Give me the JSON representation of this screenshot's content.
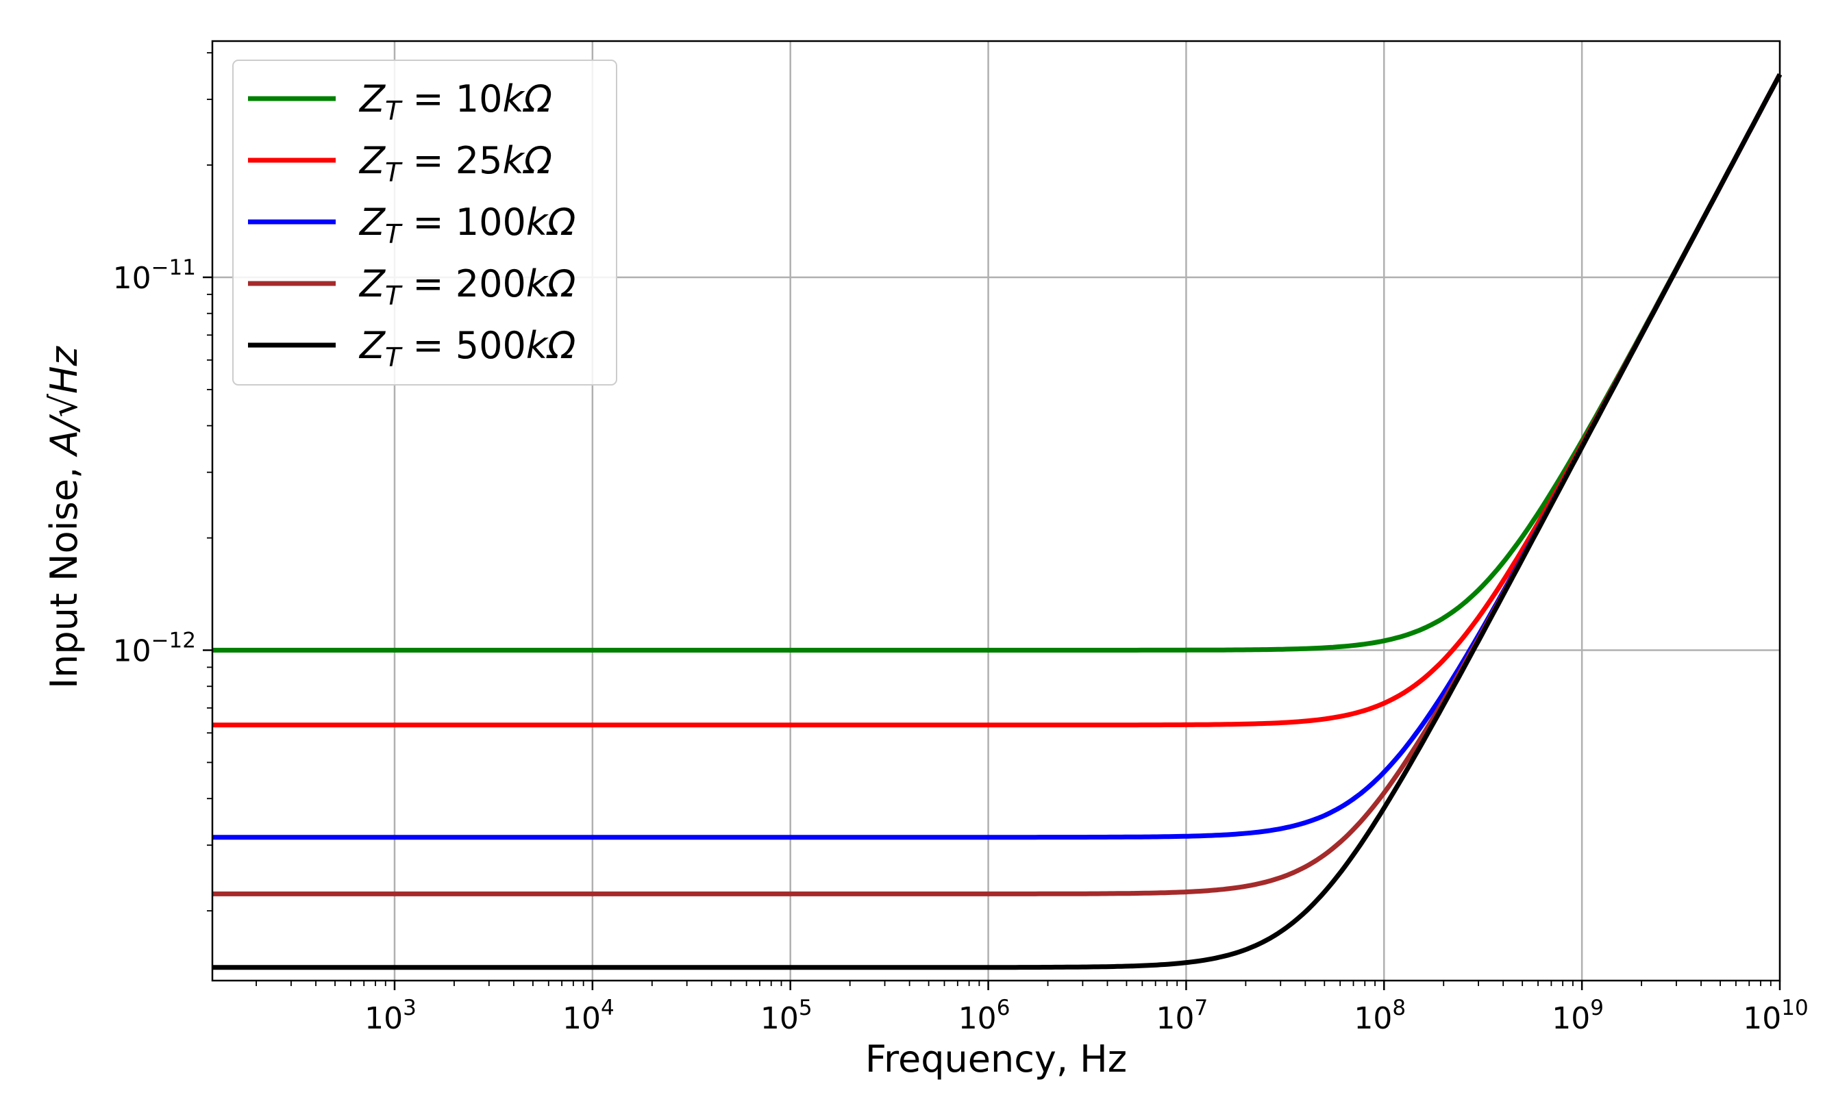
{
  "chart_data": {
    "type": "line",
    "xscale": "log",
    "yscale": "log",
    "xlabel": "Frequency, Hz",
    "ylabel_prefix": "Input Noise, ",
    "ylabel_unit": "A/√Hz",
    "xlim": [
      120,
      10000000000
    ],
    "ylim": [
      1.3e-13,
      4.3e-11
    ],
    "grid": true,
    "legend_position": "top-left",
    "x_ticks": [
      {
        "value": 1000,
        "base": "10",
        "exp": "3"
      },
      {
        "value": 10000,
        "base": "10",
        "exp": "4"
      },
      {
        "value": 100000,
        "base": "10",
        "exp": "5"
      },
      {
        "value": 1000000,
        "base": "10",
        "exp": "6"
      },
      {
        "value": 10000000,
        "base": "10",
        "exp": "7"
      },
      {
        "value": 100000000,
        "base": "10",
        "exp": "8"
      },
      {
        "value": 1000000000,
        "base": "10",
        "exp": "9"
      },
      {
        "value": 10000000000,
        "base": "10",
        "exp": "10"
      }
    ],
    "y_ticks": [
      {
        "value": 1e-12,
        "base": "10",
        "exp": "−12"
      },
      {
        "value": 1e-11,
        "base": "10",
        "exp": "−11"
      }
    ],
    "model": {
      "description": "noise(f) = sqrt(floor^2 + (k*f)^2)",
      "k": 3.5e-21
    },
    "series": [
      {
        "name": "Z_T = 10kΩ",
        "legend_sub": "T",
        "legend_value": "10",
        "legend_unit": "kΩ",
        "floor": 1e-12,
        "color": "#008000"
      },
      {
        "name": "Z_T = 25kΩ",
        "legend_sub": "T",
        "legend_value": "25",
        "legend_unit": "kΩ",
        "floor": 6.3e-13,
        "color": "#ff0000"
      },
      {
        "name": "Z_T = 100kΩ",
        "legend_sub": "T",
        "legend_value": "100",
        "legend_unit": "kΩ",
        "floor": 3.15e-13,
        "color": "#0000ff"
      },
      {
        "name": "Z_T = 200kΩ",
        "legend_sub": "T",
        "legend_value": "200",
        "legend_unit": "kΩ",
        "floor": 2.22e-13,
        "color": "#a52a2a"
      },
      {
        "name": "Z_T = 500kΩ",
        "legend_sub": "T",
        "legend_value": "500",
        "legend_unit": "kΩ",
        "floor": 1.41e-13,
        "color": "#000000"
      }
    ]
  }
}
